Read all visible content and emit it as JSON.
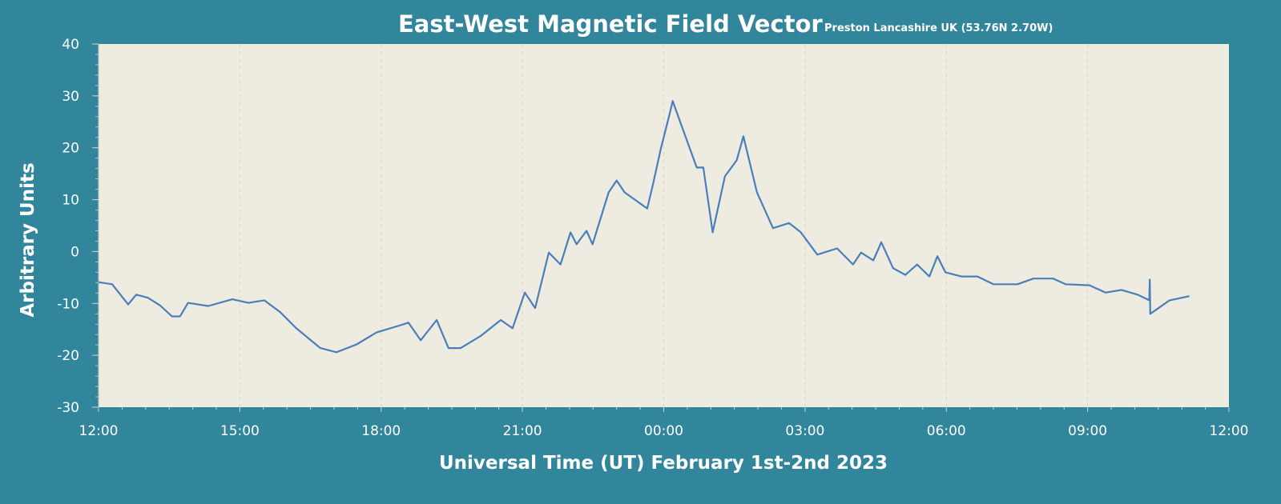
{
  "chart_data": {
    "type": "line",
    "title": "East-West Magnetic Field Vector",
    "subtitle": "Preston Lancashire UK (53.76N  2.70W)",
    "xlabel": "Universal Time (UT) February 1st-2nd 2023",
    "ylabel": "Arbitrary Units",
    "ylim": [
      -30,
      40
    ],
    "yticks": [
      "40",
      "30",
      "20",
      "10",
      "0",
      "-10",
      "-20",
      "-30"
    ],
    "ytick_values": [
      40,
      30,
      20,
      10,
      0,
      -10,
      -20,
      -30
    ],
    "xlim_hours_since_start": [
      0,
      24
    ],
    "xticks": [
      "12:00",
      "15:00",
      "18:00",
      "21:00",
      "00:00",
      "03:00",
      "06:00",
      "09:00",
      "12:00"
    ],
    "grid": "vertical dashed",
    "colors": {
      "background": "#31869b",
      "plot": "#eeece1",
      "line": "#4a7ebb",
      "grid": "#d9d6c8"
    },
    "series": [
      {
        "name": "East-West",
        "x": [
          0,
          0.29,
          0.63,
          0.8,
          1.05,
          1.31,
          1.56,
          1.73,
          1.9,
          2.33,
          2.84,
          3.18,
          3.52,
          3.86,
          4.2,
          4.71,
          5.05,
          5.48,
          5.9,
          6.41,
          6.58,
          6.84,
          7.18,
          7.43,
          7.69,
          8.11,
          8.54,
          8.79,
          9.05,
          9.27,
          9.56,
          9.81,
          10.02,
          10.15,
          10.36,
          10.49,
          10.83,
          11.0,
          11.17,
          11.51,
          11.65,
          11.77,
          11.94,
          12.11,
          12.19,
          12.36,
          12.7,
          12.84,
          13.04,
          13.3,
          13.55,
          13.69,
          13.98,
          14.32,
          14.66,
          14.91,
          15.26,
          15.68,
          16.02,
          16.19,
          16.45,
          16.62,
          16.87,
          17.13,
          17.38,
          17.64,
          17.81,
          17.98,
          18.32,
          18.66,
          19.0,
          19.51,
          19.85,
          20.27,
          20.53,
          21.04,
          21.38,
          21.72,
          22.06,
          22.31,
          22.32,
          22.33,
          22.74,
          23.16
        ],
        "y": [
          -5.9,
          -6.3,
          -10.2,
          -8.3,
          -8.9,
          -10.4,
          -12.5,
          -12.5,
          -9.9,
          -10.5,
          -9.2,
          -9.9,
          -9.4,
          -11.7,
          -14.8,
          -18.6,
          -19.4,
          -17.9,
          -15.6,
          -14.2,
          -13.7,
          -17.1,
          -13.2,
          -18.6,
          -18.6,
          -16.3,
          -13.2,
          -14.8,
          -7.9,
          -10.9,
          -0.2,
          -2.5,
          3.7,
          1.4,
          4.0,
          1.4,
          11.4,
          13.7,
          11.4,
          9.2,
          8.3,
          12.9,
          19.9,
          26.0,
          29.0,
          24.7,
          16.2,
          16.2,
          3.7,
          14.5,
          17.6,
          22.2,
          11.4,
          4.5,
          5.5,
          3.7,
          -0.6,
          0.6,
          -2.5,
          -0.2,
          -1.7,
          1.8,
          -3.2,
          -4.5,
          -2.5,
          -4.8,
          -0.9,
          -4.0,
          -4.8,
          -4.8,
          -6.3,
          -6.3,
          -5.2,
          -5.2,
          -6.3,
          -6.5,
          -7.9,
          -7.4,
          -8.3,
          -9.4,
          -5.4,
          -12.0,
          -9.4,
          -8.6
        ]
      }
    ]
  }
}
